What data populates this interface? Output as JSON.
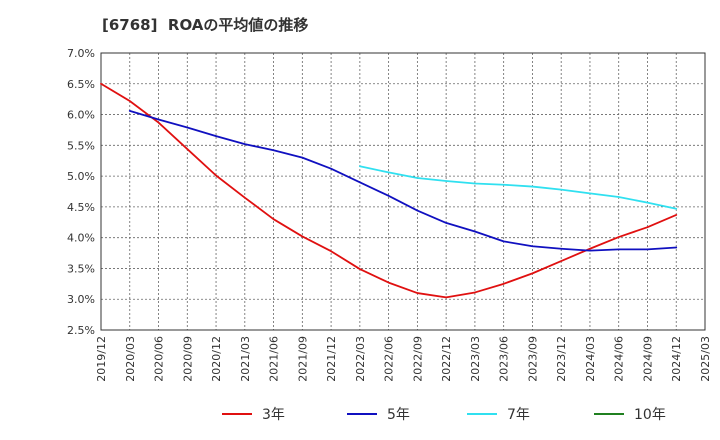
{
  "chart_data": {
    "type": "line",
    "title": "[6768]  ROAの平均値の推移",
    "xlabel": "",
    "ylabel": "",
    "ylim": [
      2.5,
      7.0
    ],
    "yticks": [
      "2.5%",
      "3.0%",
      "3.5%",
      "4.0%",
      "4.5%",
      "5.0%",
      "5.5%",
      "6.0%",
      "6.5%",
      "7.0%"
    ],
    "categories": [
      "2019/12",
      "2020/03",
      "2020/06",
      "2020/09",
      "2020/12",
      "2021/03",
      "2021/06",
      "2021/09",
      "2021/12",
      "2022/03",
      "2022/06",
      "2022/09",
      "2022/12",
      "2023/03",
      "2023/06",
      "2023/09",
      "2023/12",
      "2024/03",
      "2024/06",
      "2024/09",
      "2024/12",
      "2025/03"
    ],
    "grid": true,
    "legend_position": "bottom",
    "series": [
      {
        "name": "3年",
        "color": "#e01010",
        "values": [
          6.5,
          6.22,
          5.87,
          5.44,
          5.01,
          4.65,
          4.3,
          4.02,
          3.78,
          3.49,
          3.27,
          3.1,
          3.03,
          3.11,
          3.25,
          3.42,
          3.62,
          3.82,
          4.01,
          4.17,
          4.37,
          null
        ]
      },
      {
        "name": "5年",
        "color": "#1010c0",
        "values": [
          null,
          6.06,
          5.92,
          5.79,
          5.65,
          5.52,
          5.42,
          5.3,
          5.12,
          4.9,
          4.68,
          4.44,
          4.24,
          4.1,
          3.94,
          3.86,
          3.82,
          3.79,
          3.81,
          3.81,
          3.84,
          null
        ]
      },
      {
        "name": "7年",
        "color": "#30e0f0",
        "values": [
          null,
          null,
          null,
          null,
          null,
          null,
          null,
          null,
          null,
          5.16,
          5.06,
          4.97,
          4.92,
          4.88,
          4.86,
          4.83,
          4.78,
          4.72,
          4.66,
          4.57,
          4.47,
          null
        ]
      },
      {
        "name": "10年",
        "color": "#208020",
        "values": [
          null,
          null,
          null,
          null,
          null,
          null,
          null,
          null,
          null,
          null,
          null,
          null,
          null,
          null,
          null,
          null,
          null,
          null,
          null,
          null,
          null,
          null
        ]
      }
    ]
  }
}
